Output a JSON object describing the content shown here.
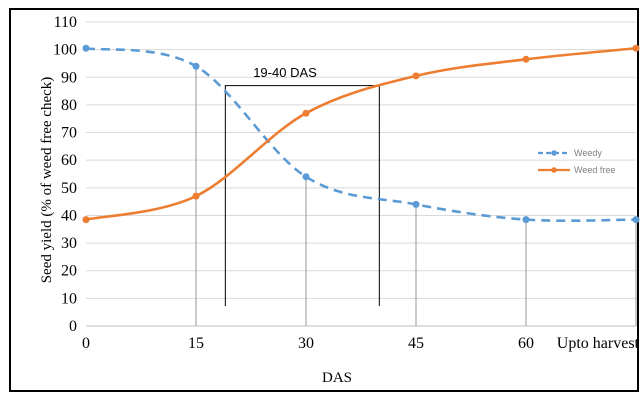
{
  "chart_data": {
    "type": "line",
    "ylabel": "Seed yield (% of weed free check)",
    "xlabel": "DAS",
    "categories": [
      "0",
      "15",
      "30",
      "45",
      "60",
      "Upto harvest"
    ],
    "ylim": [
      0,
      110
    ],
    "y_ticks": [
      0,
      10,
      20,
      30,
      40,
      50,
      60,
      70,
      80,
      90,
      100,
      110
    ],
    "grid": "horizontal and vertical, light gray",
    "legend_position": "right",
    "series": [
      {
        "name": "Weedy",
        "color": "#5b9bd5",
        "style": "dashed",
        "values": [
          100.5,
          94,
          54,
          44,
          38.5,
          38.5
        ]
      },
      {
        "name": "Weed free",
        "color": "#ed7d31",
        "style": "solid",
        "values": [
          38.5,
          47,
          77,
          90.5,
          96.5,
          100.5
        ]
      }
    ],
    "annotation": {
      "text": "19-40 DAS",
      "x_range": [
        19,
        40
      ],
      "line_height": 87
    }
  }
}
